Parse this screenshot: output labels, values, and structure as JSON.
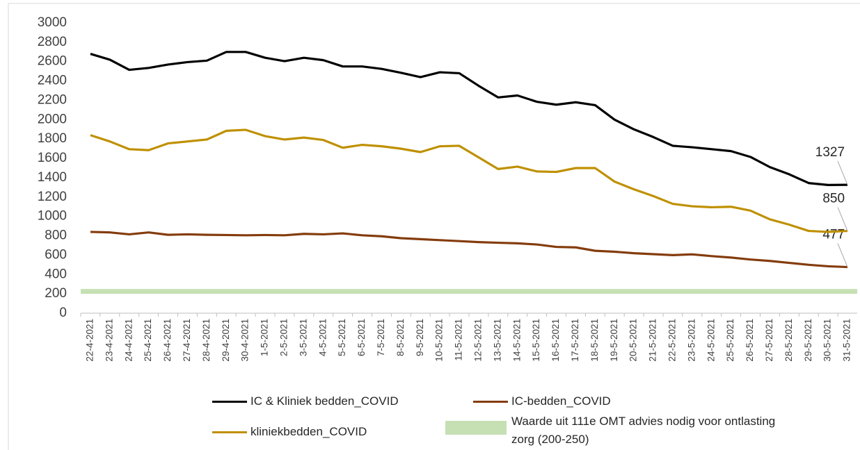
{
  "chart_data": {
    "type": "line",
    "categories": [
      "22-4-2021",
      "23-4-2021",
      "24-4-2021",
      "25-4-2021",
      "26-4-2021",
      "27-4-2021",
      "28-4-2021",
      "29-4-2021",
      "30-4-2021",
      "1-5-2021",
      "2-5-2021",
      "3-5-2021",
      "4-5-2021",
      "5-5-2021",
      "6-5-2021",
      "7-5-2021",
      "8-5-2021",
      "9-5-2021",
      "10-5-2021",
      "11-5-2021",
      "12-5-2021",
      "13-5-2021",
      "14-5-2021",
      "15-5-2021",
      "16-5-2021",
      "17-5-2021",
      "18-5-2021",
      "19-5-2021",
      "20-5-2021",
      "21-5-2021",
      "22-5-2021",
      "23-5-2021",
      "24-5-2021",
      "25-5-2021",
      "26-5-2021",
      "27-5-2021",
      "28-5-2021",
      "29-5-2021",
      "30-5-2021",
      "31-5-2021"
    ],
    "series": [
      {
        "name": "IC & Kliniek bedden_COVID",
        "color": "#000000",
        "values": [
          2680,
          2620,
          2515,
          2535,
          2570,
          2595,
          2610,
          2700,
          2700,
          2640,
          2605,
          2640,
          2615,
          2550,
          2550,
          2525,
          2485,
          2440,
          2490,
          2480,
          2350,
          2230,
          2250,
          2185,
          2155,
          2180,
          2150,
          2000,
          1900,
          1820,
          1730,
          1715,
          1695,
          1675,
          1615,
          1510,
          1435,
          1345,
          1325,
          1327
        ]
      },
      {
        "name": "IC-bedden_COVID",
        "color": "#843c0c",
        "values": [
          840,
          835,
          815,
          835,
          810,
          815,
          810,
          808,
          805,
          808,
          805,
          820,
          815,
          825,
          805,
          795,
          775,
          765,
          755,
          745,
          735,
          728,
          722,
          710,
          685,
          680,
          645,
          635,
          620,
          610,
          600,
          608,
          590,
          575,
          555,
          540,
          520,
          500,
          485,
          477
        ]
      },
      {
        "name": "kliniekbedden_COVID",
        "color": "#bf9000",
        "values": [
          1840,
          1775,
          1695,
          1685,
          1755,
          1775,
          1795,
          1885,
          1895,
          1830,
          1795,
          1815,
          1790,
          1710,
          1740,
          1725,
          1700,
          1665,
          1725,
          1730,
          1610,
          1490,
          1515,
          1465,
          1460,
          1500,
          1500,
          1360,
          1280,
          1210,
          1130,
          1105,
          1095,
          1100,
          1060,
          970,
          915,
          850,
          840,
          850
        ]
      }
    ],
    "bands": [
      {
        "name": "Waarde uit 111e OMT advies nodig voor ontlasting zorg (200-250)",
        "color": "#c6e0b4",
        "from": 200,
        "to": 250
      }
    ],
    "data_labels": "last",
    "ylim": [
      0,
      3000
    ],
    "yticks": [
      0,
      200,
      400,
      600,
      800,
      1000,
      1200,
      1400,
      1600,
      1800,
      2000,
      2200,
      2400,
      2600,
      2800,
      3000
    ],
    "grid": false
  }
}
